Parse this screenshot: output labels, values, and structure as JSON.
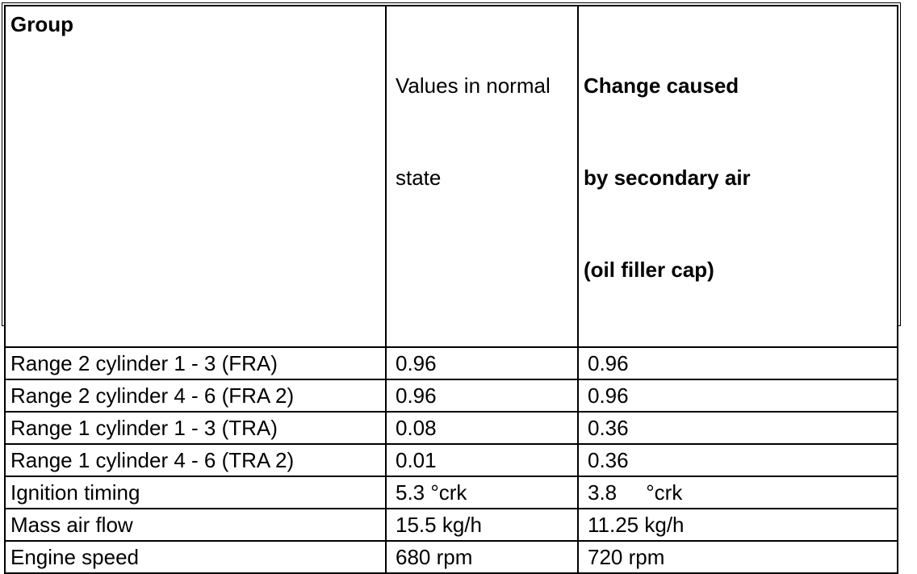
{
  "page": {
    "background_color": "#ffffff",
    "border_color": "#000000",
    "text_color": "#000000"
  },
  "table": {
    "header": {
      "group": "Group",
      "values_normal_lines": [
        "Values in normal",
        "state"
      ],
      "change_lines": [
        "Change caused",
        "by secondary air",
        "(oil filler cap)"
      ]
    },
    "rows": [
      {
        "group": "Range 2 cylinder 1 - 3 (FRA)",
        "normal_value": "0.96",
        "change_value": "0.96"
      },
      {
        "group": "Range 2 cylinder 4 - 6 (FRA 2)",
        "normal_value": "0.96",
        "change_value": "0.96"
      },
      {
        "group": "Range 1 cylinder 1 - 3 (TRA)",
        "normal_value": "0.08",
        "change_value": "0.36"
      },
      {
        "group": "Range 1 cylinder 4 - 6 (TRA 2)",
        "normal_value": "0.01",
        "change_value": "0.36"
      },
      {
        "group": "Ignition timing",
        "normal_value": "5.3 °crk",
        "change_value": "3.8     °crk"
      },
      {
        "group": "Mass air flow",
        "normal_value": "15.5 kg/h",
        "change_value": "11.25 kg/h"
      },
      {
        "group": "Engine speed",
        "normal_value": "680 rpm",
        "change_value": "720 rpm"
      }
    ]
  }
}
